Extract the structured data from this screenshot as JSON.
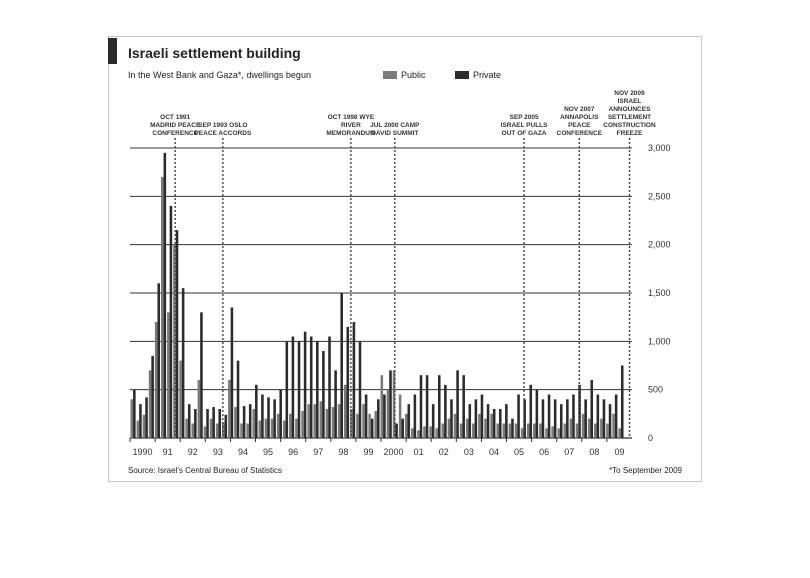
{
  "title": "Israeli settlement building",
  "subtitle": "In the West Bank and Gaza*, dwellings begun",
  "source": "Source: Israel's Central Bureau of Statistics",
  "footnote": "*To September 2009",
  "colors": {
    "public": "#7a7a7a",
    "private": "#2b2b2b",
    "grid": "#333333",
    "annotation": "#444444"
  },
  "chart_data": {
    "type": "bar",
    "y_ticks": [
      "3,000",
      "2,500",
      "2,000",
      "1,500",
      "1,000",
      "500",
      "0"
    ],
    "ylim": [
      0,
      3000
    ],
    "x_ticks": [
      "1990",
      "91",
      "92",
      "93",
      "94",
      "95",
      "96",
      "97",
      "98",
      "99",
      "2000",
      "01",
      "02",
      "03",
      "04",
      "05",
      "06",
      "07",
      "08",
      "09"
    ],
    "series": [
      {
        "name": "Public",
        "values": [
          400,
          180,
          240,
          700,
          1200,
          2700,
          1300,
          2000,
          800,
          200,
          150,
          600,
          120,
          200,
          150,
          160,
          600,
          320,
          150,
          150,
          300,
          180,
          200,
          200,
          250,
          180,
          250,
          200,
          280,
          350,
          350,
          380,
          300,
          320,
          350,
          550,
          300,
          250,
          350,
          250,
          280,
          650,
          500,
          700,
          450,
          250,
          100,
          80,
          120,
          120,
          100,
          150,
          200,
          250,
          150,
          200,
          150,
          250,
          200,
          250,
          150,
          150,
          150,
          150,
          100,
          150,
          150,
          150,
          100,
          120,
          100,
          150,
          200,
          150,
          250,
          200,
          150,
          200,
          150,
          250,
          100
        ]
      },
      {
        "name": "Private",
        "values": [
          500,
          350,
          420,
          850,
          1600,
          2950,
          2400,
          2150,
          1550,
          350,
          300,
          1300,
          300,
          320,
          300,
          240,
          1350,
          800,
          330,
          350,
          550,
          450,
          420,
          400,
          500,
          1000,
          1050,
          1000,
          1100,
          1050,
          1000,
          900,
          1050,
          700,
          1500,
          1150,
          1200,
          1000,
          450,
          200,
          400,
          450,
          700,
          150,
          200,
          350,
          450,
          650,
          650,
          350,
          650,
          550,
          400,
          700,
          650,
          350,
          400,
          450,
          350,
          300,
          300,
          350,
          200,
          450,
          400,
          550,
          500,
          400,
          450,
          400,
          350,
          400,
          450,
          550,
          400,
          600,
          450,
          400,
          350,
          450,
          750
        ]
      }
    ],
    "annotations": [
      {
        "label": "OCT 1991 MADRID PEACE CONFERENCE",
        "x": 1991.8
      },
      {
        "label": "SEP 1993 OSLO PEACE ACCORDS",
        "x": 1993.7
      },
      {
        "label": "OCT 1998 WYE RIVER MEMORANDUM",
        "x": 1998.8
      },
      {
        "label": "JUL 2000 CAMP DAVID SUMMIT",
        "x": 2000.55
      },
      {
        "label": "SEP 2005 ISRAEL PULLS OUT OF GAZA",
        "x": 2005.7
      },
      {
        "label": "NOV 2007 ANNAPOLIS PEACE CONFERENCE",
        "x": 2007.9
      },
      {
        "label": "NOV 2009 ISRAEL ANNOUNCES SETTLEMENT CONSTRUCTION FREEZE",
        "x": 2009.9
      }
    ]
  }
}
